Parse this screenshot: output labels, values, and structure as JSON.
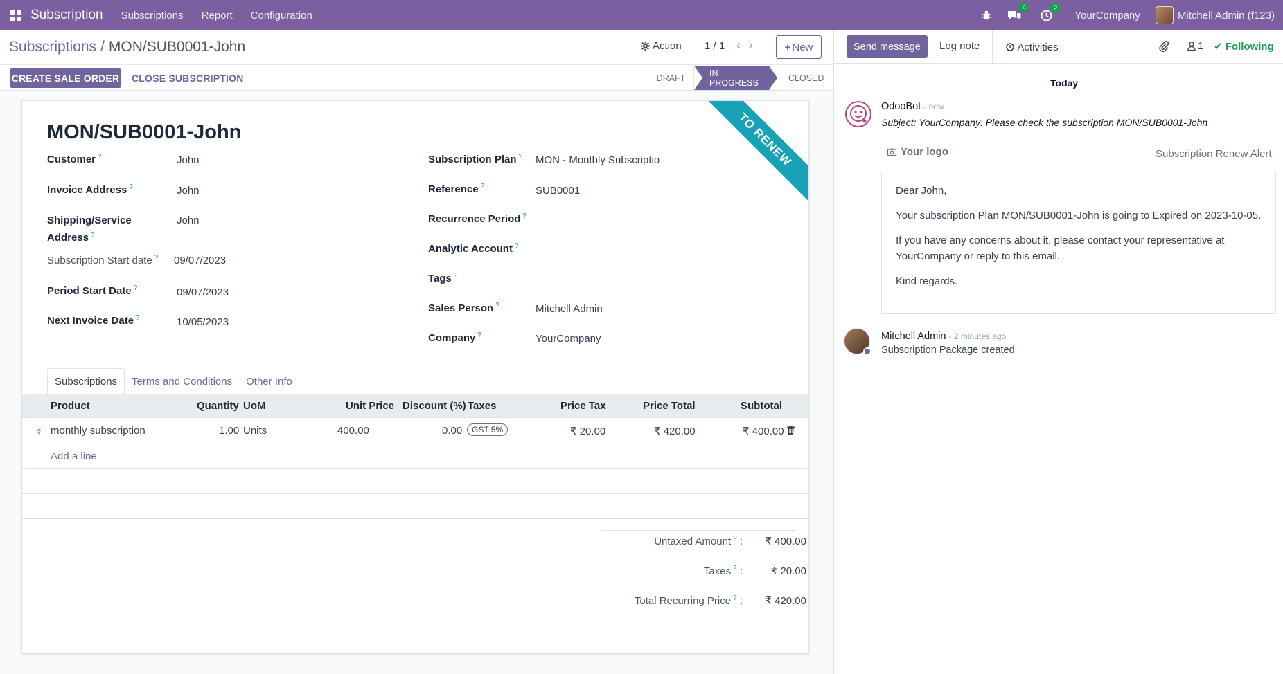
{
  "navbar": {
    "app_name": "Subscription",
    "menus": [
      "Subscriptions",
      "Report",
      "Configuration"
    ],
    "messages_count": "4",
    "activities_count": "2",
    "company": "YourCompany",
    "user": "Mitchell Admin (f123)"
  },
  "control": {
    "breadcrumb_parent": "Subscriptions",
    "breadcrumb_current": "MON/SUB0001-John",
    "action_label": "Action",
    "pager": "1 / 1",
    "new_label": "New",
    "create_sale_order": "CREATE SALE ORDER",
    "close_subscription": "CLOSE SUBSCRIPTION",
    "stages": [
      "DRAFT",
      "IN PROGRESS",
      "CLOSED"
    ]
  },
  "form": {
    "ribbon": "TO RENEW",
    "title": "MON/SUB0001-John",
    "left": [
      {
        "label": "Customer",
        "value": "John"
      },
      {
        "label": "Invoice Address",
        "value": "John"
      },
      {
        "label": "Shipping/Service Address",
        "value": "John"
      },
      {
        "label": "Subscription Start date",
        "value": "09/07/2023"
      },
      {
        "label": "Period Start Date",
        "value": "09/07/2023"
      },
      {
        "label": "Next Invoice Date",
        "value": "10/05/2023"
      }
    ],
    "right": [
      {
        "label": "Subscription Plan",
        "value": "MON - Monthly Subscriptior"
      },
      {
        "label": "Reference",
        "value": "SUB0001"
      },
      {
        "label": "Recurrence Period",
        "value": ""
      },
      {
        "label": "Analytic Account",
        "value": ""
      },
      {
        "label": "Tags",
        "value": ""
      },
      {
        "label": "Sales Person",
        "value": "Mitchell Admin"
      },
      {
        "label": "Company",
        "value": "YourCompany"
      }
    ],
    "tabs": [
      "Subscriptions",
      "Terms and Conditions",
      "Other Info"
    ],
    "columns": [
      "Product",
      "Quantity",
      "UoM",
      "Unit Price",
      "Discount (%)",
      "Taxes",
      "Price Tax",
      "Price Total",
      "Subtotal"
    ],
    "lines": [
      {
        "product": "monthly subscription",
        "quantity": "1.00",
        "uom": "Units",
        "unit_price": "400.00",
        "discount": "0.00",
        "taxes": "GST 5%",
        "price_tax": "₹ 20.00",
        "price_total": "₹ 420.00",
        "subtotal": "₹ 400.00"
      }
    ],
    "add_line": "Add a line",
    "totals": [
      {
        "label": "Untaxed Amount",
        "value": "₹ 400.00"
      },
      {
        "label": "Taxes",
        "value": "₹ 20.00"
      },
      {
        "label": "Total Recurring Price",
        "value": "₹ 420.00"
      }
    ]
  },
  "chatter": {
    "send_message": "Send message",
    "log_note": "Log note",
    "activities": "Activities",
    "followers": "1",
    "following": "Following",
    "today": "Today",
    "msg1_author": "OdooBot",
    "msg1_time": "- now",
    "msg1_subject": "Subject: YourCompany: Please check the subscription MON/SUB0001-John",
    "logo_text": "Your logo",
    "renew_alert": "Subscription Renew Alert",
    "mail_greeting": "Dear John,",
    "mail_p1": "Your subscription Plan MON/SUB0001-John is going to Expired on 2023-10-05.",
    "mail_p2": "If you have any concerns about it, please contact your representative at YourCompany or reply to this email.",
    "mail_closing": "Kind regards.",
    "msg2_author": "Mitchell Admin",
    "msg2_time": "- 2 minutes ago",
    "msg2_body": "Subscription Package created"
  }
}
